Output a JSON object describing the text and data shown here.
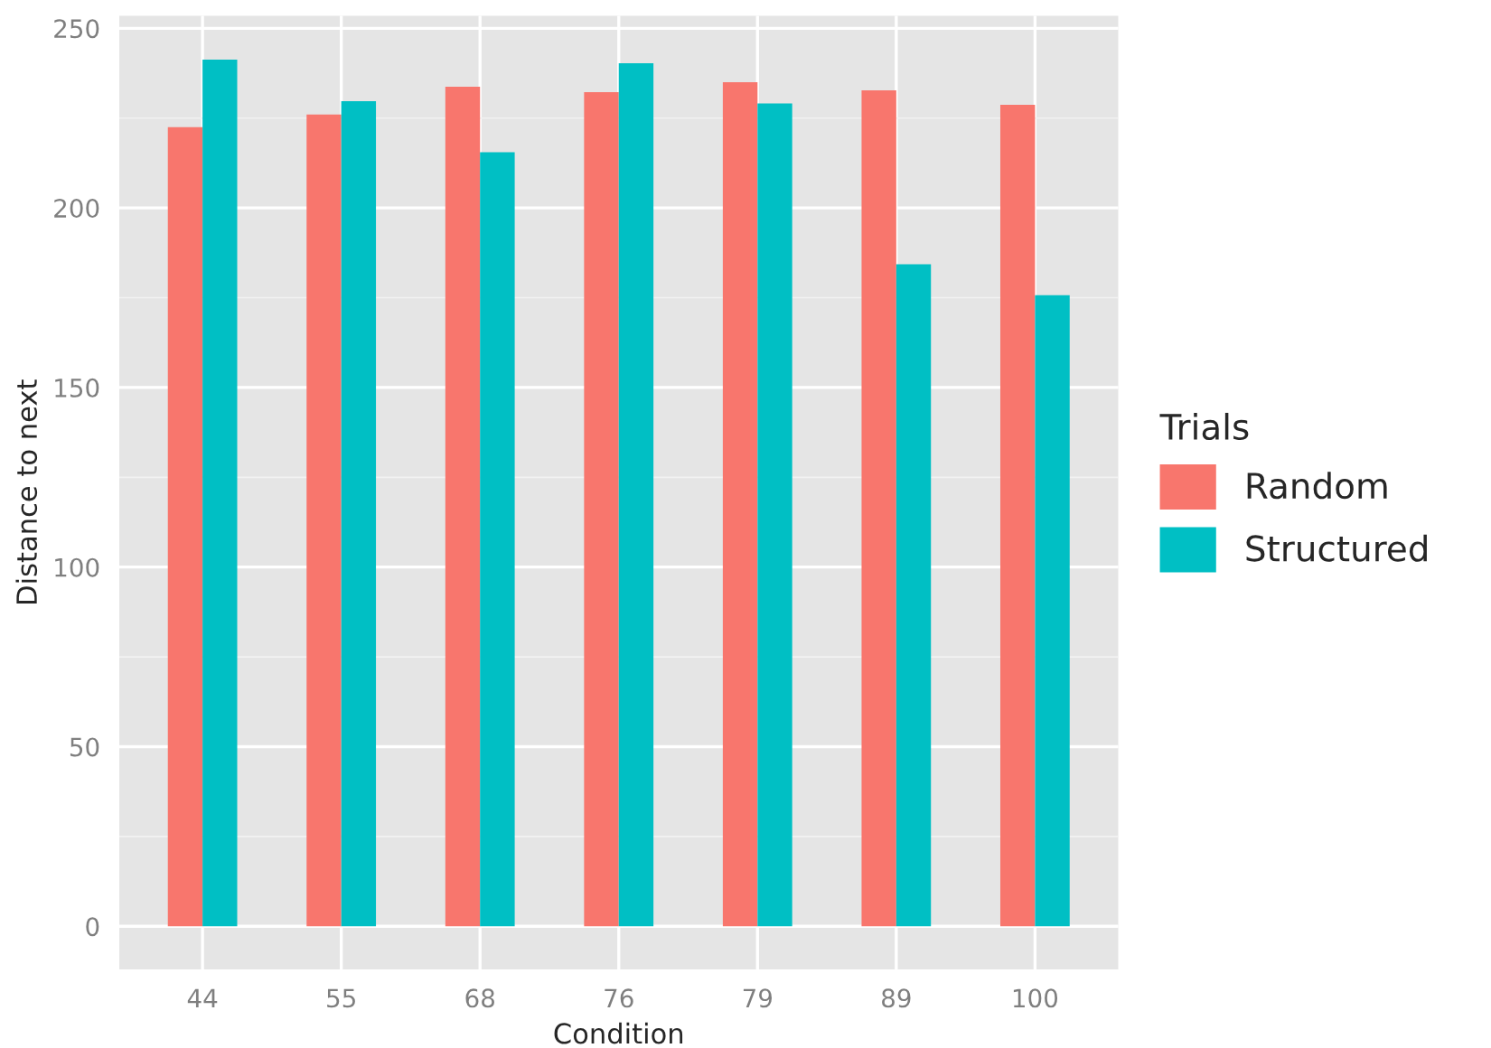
{
  "chart_data": {
    "type": "bar",
    "xlabel": "Condition",
    "ylabel": "Distance to next",
    "legend_title": "Trials",
    "categories": [
      "44",
      "55",
      "68",
      "76",
      "79",
      "89",
      "100"
    ],
    "series": [
      {
        "name": "Random",
        "color": "#f8766d",
        "values": [
          222.5,
          226,
          233.7,
          232.2,
          235,
          232.7,
          228.7
        ]
      },
      {
        "name": "Structured",
        "color": "#00bfc4",
        "values": [
          241.3,
          229.7,
          215.5,
          240.3,
          229.1,
          184.3,
          175.7
        ]
      }
    ],
    "ylim": [
      -12,
      253.5
    ],
    "yticks": [
      0,
      50,
      100,
      150,
      200,
      250
    ],
    "grid": true,
    "legend": "right"
  }
}
